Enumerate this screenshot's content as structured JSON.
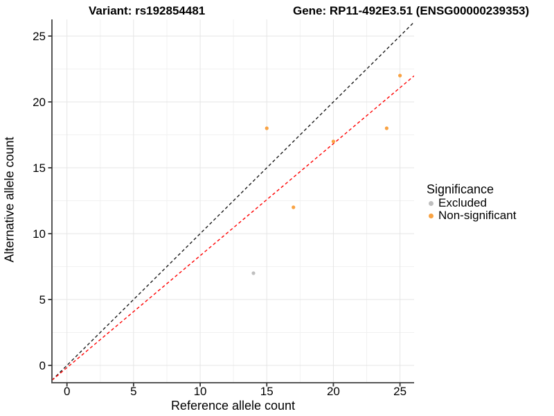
{
  "titles": {
    "left": "Variant: rs192854481",
    "right": "Gene: RP11-492E3.51 (ENSG00000239353)"
  },
  "chart_data": {
    "type": "scatter",
    "xlabel": "Reference allele count",
    "ylabel": "Alternative allele count",
    "xlim": [
      -1.128,
      26.06
    ],
    "ylim": [
      -1.316,
      26.263
    ],
    "x_ticks": [
      0,
      5,
      10,
      15,
      20,
      25
    ],
    "y_ticks": [
      0,
      5,
      10,
      15,
      20,
      25
    ],
    "grid": {
      "on": true,
      "major": [
        0,
        5,
        10,
        15,
        20,
        25
      ],
      "minor": [
        2.5,
        7.5,
        12.5,
        17.5,
        22.5
      ],
      "major_color": "#e5e5e5",
      "minor_color": "#f1f1f1"
    },
    "series": [
      {
        "name": "Excluded",
        "color": "#bfbfbf",
        "points": [
          {
            "x": 14,
            "y": 7
          }
        ]
      },
      {
        "name": "Non-significant",
        "color": "#f9a242",
        "points": [
          {
            "x": 15,
            "y": 18
          },
          {
            "x": 17,
            "y": 12
          },
          {
            "x": 20,
            "y": 17
          },
          {
            "x": 24,
            "y": 18
          },
          {
            "x": 25,
            "y": 22
          }
        ]
      }
    ],
    "lines": [
      {
        "name": "identity-line",
        "slope": 1,
        "intercept": 0,
        "color": "#1a1a1a",
        "style": "dashed"
      },
      {
        "name": "regression-line",
        "slope": 0.85,
        "intercept": -0.17,
        "color": "#ff0000",
        "style": "dashed"
      }
    ],
    "legend": {
      "title": "Significance",
      "position": "right",
      "entries": [
        {
          "label": "Excluded",
          "color": "#bfbfbf"
        },
        {
          "label": "Non-significant",
          "color": "#f9a242"
        }
      ]
    },
    "axis": {
      "line_color": "#555555",
      "tick_color": "#333333",
      "text_color": "#000000"
    }
  }
}
